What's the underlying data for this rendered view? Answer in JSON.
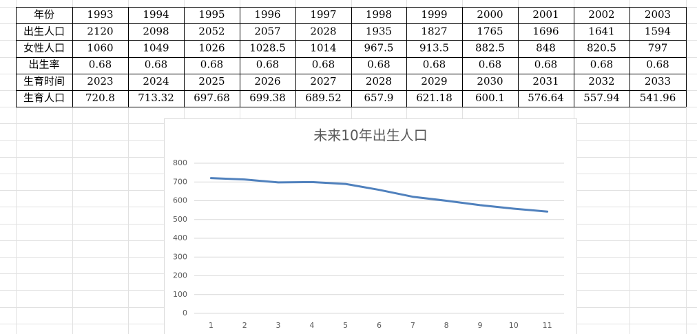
{
  "table": {
    "rows": [
      {
        "label": "年份",
        "values": [
          1993,
          1994,
          1995,
          1996,
          1997,
          1998,
          1999,
          2000,
          2001,
          2002,
          2003
        ]
      },
      {
        "label": "出生人口",
        "values": [
          2120,
          2098,
          2052,
          2057,
          2028,
          1935,
          1827,
          1765,
          1696,
          1641,
          1594
        ]
      },
      {
        "label": "女性人口",
        "values": [
          1060,
          1049,
          1026,
          1028.5,
          1014,
          967.5,
          913.5,
          882.5,
          848,
          820.5,
          797
        ]
      },
      {
        "label": "出生率",
        "values": [
          0.68,
          0.68,
          0.68,
          0.68,
          0.68,
          0.68,
          0.68,
          0.68,
          0.68,
          0.68,
          0.68
        ]
      },
      {
        "label": "生育时间",
        "values": [
          2023,
          2024,
          2025,
          2026,
          2027,
          2028,
          2029,
          2030,
          2031,
          2032,
          2033
        ]
      },
      {
        "label": "生育人口",
        "values": [
          720.8,
          713.32,
          697.68,
          699.38,
          689.52,
          657.9,
          621.18,
          600.1,
          576.64,
          557.94,
          541.96
        ]
      }
    ]
  },
  "chart_data": {
    "type": "line",
    "title": "未来10年出生人口",
    "categories": [
      "1",
      "2",
      "3",
      "4",
      "5",
      "6",
      "7",
      "8",
      "9",
      "10",
      "11"
    ],
    "values": [
      720.8,
      713.32,
      697.68,
      699.38,
      689.52,
      657.9,
      621.18,
      600.1,
      576.64,
      557.94,
      541.96
    ],
    "color": "#5081bd",
    "ylim": [
      0,
      800
    ],
    "yticks": [
      0,
      100,
      200,
      300,
      400,
      500,
      600,
      700,
      800
    ],
    "grid": true
  }
}
